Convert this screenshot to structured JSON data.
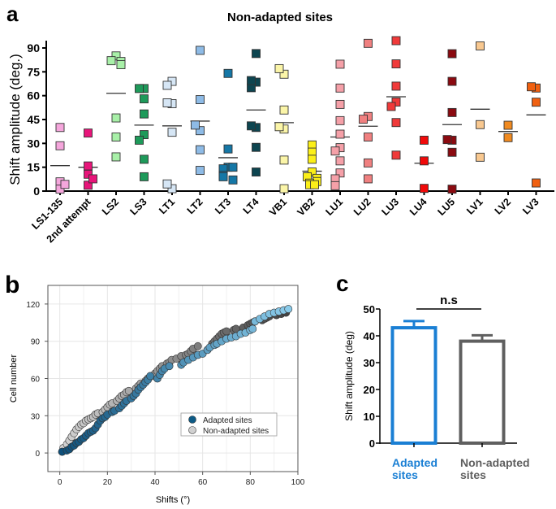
{
  "panel_labels": {
    "a": "a",
    "b": "b",
    "c": "c"
  },
  "chart_data": [
    {
      "type": "scatter",
      "panel": "a",
      "title": "Non-adapted sites",
      "xlabel": "",
      "ylabel": "Shift amplitude (deg.)",
      "ylim": [
        0,
        90
      ],
      "yticks": [
        0,
        15,
        30,
        45,
        60,
        75,
        90
      ],
      "grid": false,
      "marker": "square",
      "mean_lines": true,
      "categories": [
        {
          "label": "LS1-135",
          "color": "#f5a6dc",
          "mean": 16,
          "values": [
            40,
            28.5,
            5.8,
            1.2,
            4.2
          ]
        },
        {
          "label": "2nd attempt",
          "color": "#e8157a",
          "mean": 15,
          "values": [
            36.5,
            15.8,
            3.7,
            10.6,
            7.7
          ]
        },
        {
          "label": "LS2",
          "color": "#a8f0a8",
          "mean": 61.5,
          "values": [
            85,
            82,
            81.5,
            79.5,
            46,
            34,
            21.5
          ]
        },
        {
          "label": "LS3",
          "color": "#1e9a5a",
          "mean": 41.5,
          "values": [
            64.5,
            64.5,
            58,
            48.5,
            35.5,
            32,
            20,
            9
          ]
        },
        {
          "label": "LT1",
          "color": "#d6e6f5",
          "mean": 41,
          "values": [
            69,
            66.5,
            55,
            55.5,
            37,
            1.5,
            4.5
          ]
        },
        {
          "label": "LT2",
          "color": "#8ebbe6",
          "mean": 44,
          "values": [
            88.5,
            57.5,
            38,
            41.5,
            26,
            13
          ]
        },
        {
          "label": "LT3",
          "color": "#1577a6",
          "mean": 21,
          "values": [
            74,
            26.5,
            15,
            14,
            15,
            10,
            9,
            7
          ]
        },
        {
          "label": "LT4",
          "color": "#0d4550",
          "mean": 51,
          "values": [
            86.5,
            68.5,
            65,
            69.5,
            40,
            41,
            27.5,
            12
          ]
        },
        {
          "label": "VB1",
          "color": "#fbf5a8",
          "mean": 43,
          "values": [
            73.5,
            77,
            51,
            39,
            40.5,
            19.5,
            1.5
          ]
        },
        {
          "label": "VB2",
          "color": "#fbef18",
          "mean": 12.5,
          "values": [
            29,
            24.5,
            20,
            12,
            9,
            8,
            6,
            5,
            4,
            4
          ]
        },
        {
          "label": "LU1",
          "color": "#f5a0a8",
          "mean": 34,
          "values": [
            79.8,
            64.8,
            54.5,
            44.3,
            35.8,
            27.3,
            25.2,
            19,
            11.4,
            7.7,
            3.4
          ]
        },
        {
          "label": "LU2",
          "color": "#f08080",
          "mean": 40.8,
          "values": [
            92.9,
            46.9,
            45.2,
            34,
            17.7,
            7.7
          ]
        },
        {
          "label": "LU3",
          "color": "#f03a3a",
          "mean": 59.3,
          "values": [
            94.6,
            80,
            66,
            56,
            53.2,
            43.1,
            22.6
          ]
        },
        {
          "label": "LU4",
          "color": "#f00a0a",
          "mean": 17.5,
          "values": [
            32,
            19,
            1.7
          ]
        },
        {
          "label": "LU5",
          "color": "#8b0a10",
          "mean": 41.8,
          "values": [
            86.4,
            69,
            49.4,
            32,
            32.4,
            24.4,
            1.2
          ]
        },
        {
          "label": "LV1",
          "color": "#f8c890",
          "mean": 51.5,
          "values": [
            91.3,
            41.8,
            21.3
          ]
        },
        {
          "label": "LV2",
          "color": "#f08a20",
          "mean": 37.5,
          "values": [
            41.4,
            33.6
          ]
        },
        {
          "label": "LV3",
          "color": "#f06010",
          "mean": 47.9,
          "values": [
            64.8,
            65.6,
            55.9,
            5.1
          ]
        }
      ]
    },
    {
      "type": "scatter",
      "panel": "b",
      "xlabel": "Shifts (°)",
      "ylabel": "Cell number",
      "xlim": [
        -5,
        100
      ],
      "ylim": [
        -15,
        135
      ],
      "xticks": [
        0,
        20,
        40,
        60,
        80,
        100
      ],
      "yticks": [
        0,
        30,
        60,
        90,
        120
      ],
      "grid": true,
      "legend_position": "center-right",
      "series": [
        {
          "name": "Adapted sites",
          "legend_color": "#0d5a85",
          "color_low": "#0d4f7a",
          "color_high": "#8fd0ef",
          "points": [
            [
              1,
              1
            ],
            [
              3,
              2
            ],
            [
              4,
              3
            ],
            [
              5,
              5
            ],
            [
              6,
              6
            ],
            [
              7,
              8
            ],
            [
              8,
              9
            ],
            [
              9,
              11
            ],
            [
              10,
              12
            ],
            [
              11,
              14
            ],
            [
              12,
              16
            ],
            [
              13,
              17
            ],
            [
              14,
              18
            ],
            [
              15,
              20
            ],
            [
              16,
              23
            ],
            [
              17,
              26
            ],
            [
              18,
              28
            ],
            [
              19,
              29
            ],
            [
              20,
              31
            ],
            [
              22,
              33
            ],
            [
              23,
              34
            ],
            [
              25,
              36
            ],
            [
              26,
              38
            ],
            [
              27,
              40
            ],
            [
              28,
              42
            ],
            [
              30,
              44
            ],
            [
              31,
              46
            ],
            [
              32,
              48
            ],
            [
              33,
              51
            ],
            [
              34,
              53
            ],
            [
              35,
              55
            ],
            [
              36,
              57
            ],
            [
              37,
              59
            ],
            [
              38,
              62
            ],
            [
              41,
              60
            ],
            [
              42,
              63
            ],
            [
              43,
              66
            ],
            [
              44,
              68
            ],
            [
              46,
              70
            ],
            [
              51,
              71
            ],
            [
              52,
              73
            ],
            [
              54,
              75
            ],
            [
              56,
              77
            ],
            [
              58,
              79
            ],
            [
              60,
              80
            ],
            [
              62,
              83
            ],
            [
              63,
              85
            ],
            [
              65,
              87
            ],
            [
              66,
              88
            ],
            [
              68,
              90
            ],
            [
              70,
              92
            ],
            [
              72,
              93
            ],
            [
              74,
              94
            ],
            [
              76,
              96
            ],
            [
              78,
              97
            ],
            [
              80,
              99
            ],
            [
              81,
              100
            ],
            [
              82,
              106
            ],
            [
              84,
              108
            ],
            [
              86,
              110
            ],
            [
              88,
              112
            ],
            [
              90,
              113
            ],
            [
              92,
              114
            ],
            [
              94,
              115
            ],
            [
              96,
              116
            ]
          ]
        },
        {
          "name": "Non-adapted sites",
          "legend_color": "#d0d0d0",
          "color_low": "#d6d6d6",
          "color_high": "#3c3c3c",
          "points": [
            [
              1,
              1
            ],
            [
              1.5,
              4
            ],
            [
              3,
              7
            ],
            [
              4,
              10
            ],
            [
              5,
              13
            ],
            [
              6,
              16
            ],
            [
              7,
              19
            ],
            [
              8,
              21
            ],
            [
              9,
              23
            ],
            [
              10,
              24
            ],
            [
              11,
              26
            ],
            [
              12,
              27
            ],
            [
              13,
              28
            ],
            [
              14,
              29
            ],
            [
              15,
              31
            ],
            [
              16,
              32
            ],
            [
              18,
              33
            ],
            [
              19,
              35
            ],
            [
              20,
              37
            ],
            [
              21,
              39
            ],
            [
              22,
              40
            ],
            [
              24,
              42
            ],
            [
              25,
              44
            ],
            [
              26,
              46
            ],
            [
              27,
              47
            ],
            [
              28,
              49
            ],
            [
              29,
              50
            ],
            [
              32,
              52
            ],
            [
              33,
              54
            ],
            [
              34,
              56
            ],
            [
              36,
              58
            ],
            [
              37,
              60
            ],
            [
              39,
              62
            ],
            [
              40,
              64
            ],
            [
              41,
              66
            ],
            [
              42,
              68
            ],
            [
              43,
              70
            ],
            [
              45,
              72
            ],
            [
              46,
              73
            ],
            [
              47,
              75
            ],
            [
              49,
              76
            ],
            [
              51,
              78
            ],
            [
              53,
              79
            ],
            [
              54,
              80
            ],
            [
              55,
              82
            ],
            [
              56,
              84
            ],
            [
              58,
              86
            ],
            [
              64,
              88
            ],
            [
              65,
              90
            ],
            [
              66,
              92
            ],
            [
              67,
              94
            ],
            [
              68,
              96
            ],
            [
              69,
              97
            ],
            [
              70,
              98
            ],
            [
              73,
              99
            ],
            [
              74,
              100
            ],
            [
              77,
              101
            ],
            [
              79,
              103
            ],
            [
              80,
              104
            ],
            [
              81,
              105
            ],
            [
              82,
              106
            ],
            [
              85,
              107
            ],
            [
              86,
              108
            ],
            [
              87,
              109
            ],
            [
              88,
              110
            ],
            [
              91,
              111
            ],
            [
              93,
              112
            ],
            [
              95,
              113
            ]
          ]
        }
      ]
    },
    {
      "type": "bar",
      "panel": "c",
      "ylabel": "Shift amplitude (deg)",
      "ylim": [
        0,
        50
      ],
      "yticks": [
        0,
        10,
        20,
        30,
        40,
        50
      ],
      "categories": [
        {
          "label_line1": "Adapted",
          "label_line2": "sites",
          "value": 43,
          "error": 2.5,
          "color": "#1a7fd4"
        },
        {
          "label_line1": "Non-adapted",
          "label_line2": "sites",
          "value": 38,
          "error": 2.2,
          "color": "#5f5f5f"
        }
      ],
      "annotation": "n.s"
    }
  ]
}
